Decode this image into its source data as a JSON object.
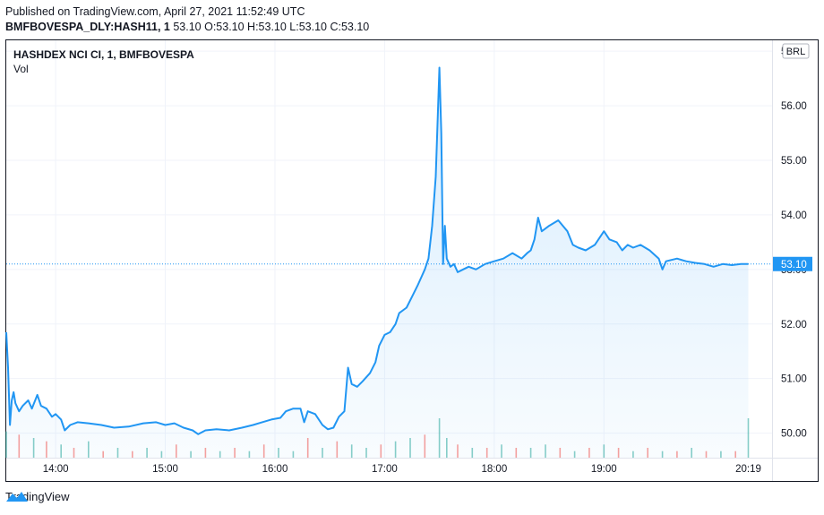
{
  "header": {
    "published": "Published on TradingView.com, April 27, 2021 11:52:49 UTC",
    "symbol_line": "BMFBOVESPA_DLY:HASH11, 1",
    "ohlc": "53.10 O:53.10 H:53.10 L:53.10 C:53.10"
  },
  "legend": {
    "title": "HASHDEX NCI CI, 1, BMFBOVESPA",
    "vol": "Vol"
  },
  "currency": "BRL",
  "last_price_label": "53.10",
  "footer": {
    "brand": "TradingView"
  },
  "colors": {
    "line": "#2196f3",
    "fill_top": "#2196f3",
    "vol_up": "#26a69a",
    "vol_down": "#ef5350",
    "last_price_bg": "#2196f3"
  },
  "chart_data": {
    "type": "area",
    "title": "HASHDEX NCI CI, 1, BMFBOVESPA",
    "xlabel": "",
    "ylabel": "",
    "x_ticks": [
      "14:00",
      "15:00",
      "16:00",
      "17:00",
      "18:00",
      "19:00",
      "20:19"
    ],
    "y_ticks": [
      "50.00",
      "51.00",
      "52.00",
      "53.00",
      "54.00",
      "55.00",
      "56.00",
      "57.00"
    ],
    "ylim": [
      49.55,
      57.2
    ],
    "xlim": [
      "13:33",
      "20:32"
    ],
    "last_price": 53.1,
    "grid": true,
    "series": [
      {
        "name": "HASH11",
        "points": [
          [
            "13:33",
            51.85
          ],
          [
            "13:34",
            51.2
          ],
          [
            "13:35",
            50.15
          ],
          [
            "13:36",
            50.6
          ],
          [
            "13:37",
            50.75
          ],
          [
            "13:38",
            50.55
          ],
          [
            "13:40",
            50.4
          ],
          [
            "13:42",
            50.5
          ],
          [
            "13:45",
            50.6
          ],
          [
            "13:47",
            50.45
          ],
          [
            "13:50",
            50.7
          ],
          [
            "13:52",
            50.5
          ],
          [
            "13:55",
            50.45
          ],
          [
            "13:58",
            50.3
          ],
          [
            "14:00",
            50.35
          ],
          [
            "14:03",
            50.25
          ],
          [
            "14:05",
            50.05
          ],
          [
            "14:08",
            50.15
          ],
          [
            "14:12",
            50.2
          ],
          [
            "14:18",
            50.18
          ],
          [
            "14:25",
            50.15
          ],
          [
            "14:32",
            50.1
          ],
          [
            "14:40",
            50.12
          ],
          [
            "14:48",
            50.18
          ],
          [
            "14:55",
            50.2
          ],
          [
            "15:00",
            50.15
          ],
          [
            "15:05",
            50.18
          ],
          [
            "15:10",
            50.1
          ],
          [
            "15:15",
            50.05
          ],
          [
            "15:18",
            49.98
          ],
          [
            "15:22",
            50.05
          ],
          [
            "15:28",
            50.07
          ],
          [
            "15:35",
            50.05
          ],
          [
            "15:42",
            50.1
          ],
          [
            "15:48",
            50.15
          ],
          [
            "15:53",
            50.2
          ],
          [
            "15:58",
            50.25
          ],
          [
            "16:03",
            50.28
          ],
          [
            "16:06",
            50.4
          ],
          [
            "16:10",
            50.45
          ],
          [
            "16:14",
            50.45
          ],
          [
            "16:16",
            50.2
          ],
          [
            "16:18",
            50.4
          ],
          [
            "16:22",
            50.35
          ],
          [
            "16:26",
            50.15
          ],
          [
            "16:29",
            50.07
          ],
          [
            "16:32",
            50.1
          ],
          [
            "16:35",
            50.3
          ],
          [
            "16:38",
            50.4
          ],
          [
            "16:40",
            51.2
          ],
          [
            "16:42",
            50.9
          ],
          [
            "16:45",
            50.85
          ],
          [
            "16:48",
            50.95
          ],
          [
            "16:52",
            51.1
          ],
          [
            "16:55",
            51.3
          ],
          [
            "16:57",
            51.6
          ],
          [
            "17:00",
            51.8
          ],
          [
            "17:03",
            51.85
          ],
          [
            "17:06",
            52.0
          ],
          [
            "17:08",
            52.2
          ],
          [
            "17:12",
            52.3
          ],
          [
            "17:15",
            52.5
          ],
          [
            "17:18",
            52.7
          ],
          [
            "17:20",
            52.85
          ],
          [
            "17:22",
            53.0
          ],
          [
            "17:24",
            53.2
          ],
          [
            "17:26",
            53.8
          ],
          [
            "17:28",
            54.7
          ],
          [
            "17:30",
            56.7
          ],
          [
            "17:31",
            55.5
          ],
          [
            "17:32",
            53.1
          ],
          [
            "17:33",
            53.8
          ],
          [
            "17:34",
            53.2
          ],
          [
            "17:36",
            53.05
          ],
          [
            "17:38",
            53.1
          ],
          [
            "17:40",
            52.95
          ],
          [
            "17:43",
            53.0
          ],
          [
            "17:46",
            53.05
          ],
          [
            "17:50",
            53.0
          ],
          [
            "17:55",
            53.1
          ],
          [
            "18:00",
            53.15
          ],
          [
            "18:05",
            53.2
          ],
          [
            "18:10",
            53.3
          ],
          [
            "18:15",
            53.2
          ],
          [
            "18:18",
            53.3
          ],
          [
            "18:20",
            53.35
          ],
          [
            "18:22",
            53.55
          ],
          [
            "18:24",
            53.95
          ],
          [
            "18:26",
            53.7
          ],
          [
            "18:30",
            53.8
          ],
          [
            "18:35",
            53.9
          ],
          [
            "18:40",
            53.7
          ],
          [
            "18:43",
            53.45
          ],
          [
            "18:46",
            53.4
          ],
          [
            "18:50",
            53.35
          ],
          [
            "18:55",
            53.45
          ],
          [
            "18:58",
            53.6
          ],
          [
            "19:00",
            53.7
          ],
          [
            "19:03",
            53.55
          ],
          [
            "19:07",
            53.5
          ],
          [
            "19:10",
            53.35
          ],
          [
            "19:13",
            53.45
          ],
          [
            "19:16",
            53.4
          ],
          [
            "19:20",
            53.45
          ],
          [
            "19:25",
            53.35
          ],
          [
            "19:30",
            53.2
          ],
          [
            "19:32",
            53.0
          ],
          [
            "19:34",
            53.15
          ],
          [
            "19:40",
            53.2
          ],
          [
            "19:45",
            53.15
          ],
          [
            "19:50",
            53.12
          ],
          [
            "19:55",
            53.1
          ],
          [
            "20:00",
            53.05
          ],
          [
            "20:05",
            53.1
          ],
          [
            "20:10",
            53.08
          ],
          [
            "20:15",
            53.1
          ],
          [
            "20:19",
            53.1
          ]
        ]
      }
    ],
    "volume": {
      "name": "Vol",
      "times": [
        "13:33",
        "13:40",
        "13:48",
        "13:55",
        "14:03",
        "14:10",
        "14:18",
        "14:26",
        "14:34",
        "14:42",
        "14:50",
        "14:58",
        "15:06",
        "15:14",
        "15:22",
        "15:30",
        "15:38",
        "15:46",
        "15:54",
        "16:02",
        "16:10",
        "16:18",
        "16:26",
        "16:34",
        "16:42",
        "16:50",
        "16:58",
        "17:06",
        "17:14",
        "17:22",
        "17:30",
        "17:34",
        "17:40",
        "17:48",
        "17:56",
        "18:04",
        "18:12",
        "18:20",
        "18:28",
        "18:36",
        "18:44",
        "18:52",
        "19:00",
        "19:08",
        "19:16",
        "19:24",
        "19:32",
        "19:40",
        "19:48",
        "19:56",
        "20:04",
        "20:12",
        "20:19"
      ],
      "values": [
        8,
        7,
        6,
        5,
        4,
        3,
        5,
        2,
        3,
        2,
        3,
        2,
        4,
        2,
        3,
        2,
        3,
        2,
        4,
        3,
        2,
        6,
        3,
        5,
        4,
        3,
        4,
        5,
        6,
        7,
        12,
        6,
        4,
        3,
        3,
        4,
        3,
        3,
        4,
        3,
        2,
        3,
        4,
        3,
        2,
        3,
        2,
        2,
        3,
        2,
        2,
        2,
        12
      ],
      "up": [
        true,
        false,
        true,
        false,
        true,
        false,
        true,
        false,
        true,
        false,
        true,
        true,
        false,
        true,
        false,
        true,
        false,
        true,
        false,
        true,
        true,
        false,
        true,
        false,
        true,
        true,
        false,
        true,
        true,
        false,
        true,
        true,
        false,
        true,
        false,
        true,
        false,
        true,
        true,
        false,
        true,
        false,
        true,
        false,
        true,
        false,
        true,
        false,
        true,
        false,
        true,
        false,
        true
      ]
    }
  }
}
